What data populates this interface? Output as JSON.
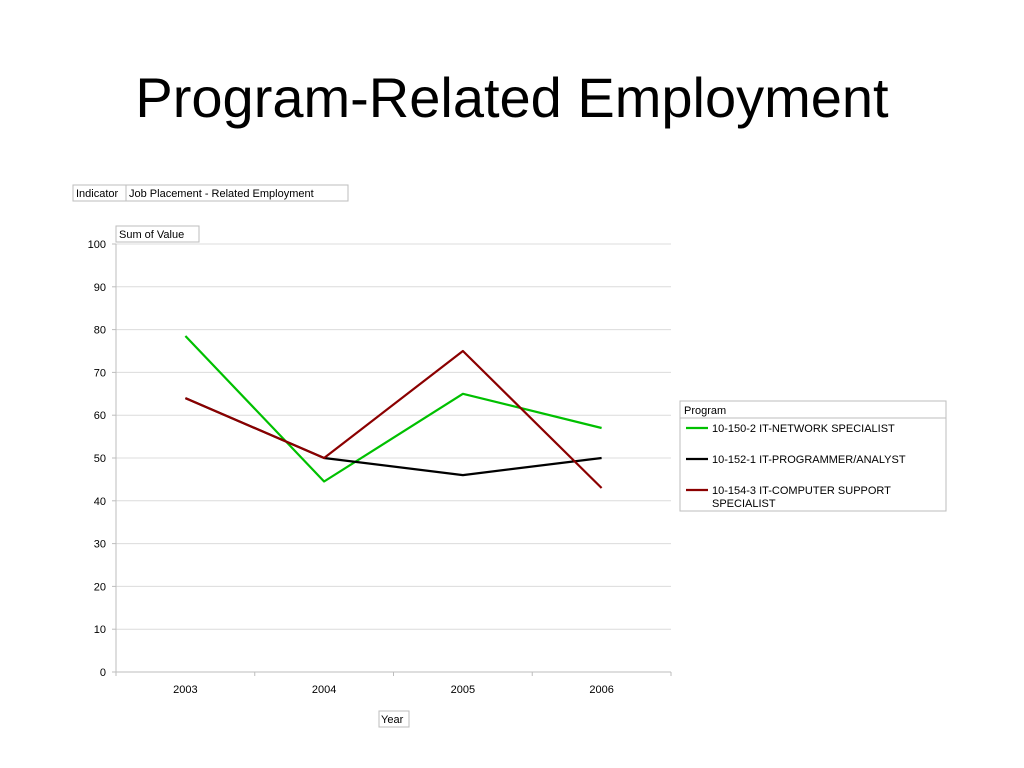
{
  "slide": {
    "title": "Program-Related Employment"
  },
  "pivot": {
    "filter_label": "Indicator",
    "filter_value": "Job Placement - Related Employment",
    "data_field": "Sum of Value",
    "axis_field": "Year",
    "legend_field": "Program"
  },
  "chart_data": {
    "type": "line",
    "x": [
      "2003",
      "2004",
      "2005",
      "2006"
    ],
    "ylim": [
      0,
      100
    ],
    "yticks": [
      0,
      10,
      20,
      30,
      40,
      50,
      60,
      70,
      80,
      90,
      100
    ],
    "grid": true,
    "xlabel": "Year",
    "ylabel": "Sum of Value",
    "legend_title": "Program",
    "legend_position": "right",
    "series": [
      {
        "name": "10-150-2 IT-NETWORK SPECIALIST",
        "color": "#00c000",
        "values": [
          78.5,
          44.5,
          65,
          57
        ]
      },
      {
        "name": "10-152-1 IT-PROGRAMMER/ANALYST",
        "color": "#000000",
        "values": [
          64,
          50,
          46,
          50
        ]
      },
      {
        "name": "10-154-3 IT-COMPUTER SUPPORT SPECIALIST",
        "color": "#8b0000",
        "values": [
          64,
          50,
          75,
          43
        ]
      }
    ]
  }
}
